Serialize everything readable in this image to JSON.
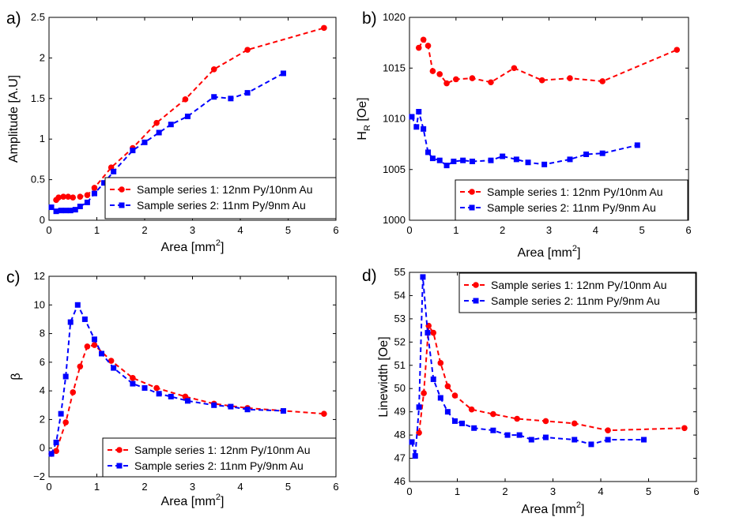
{
  "chart_data": [
    {
      "type": "line",
      "panel_label": "a)",
      "xlabel": "Area [mm",
      "xlabel_sup": "2",
      "xlabel_tail": "]",
      "ylabel": "Amplitude [A.U]",
      "xlim": [
        0,
        6
      ],
      "ylim": [
        0,
        2.5
      ],
      "xticks": [
        "0",
        "1",
        "2",
        "3",
        "4",
        "5",
        "6"
      ],
      "yticks": [
        "0",
        "0.5",
        "1",
        "1.5",
        "2",
        "2.5"
      ],
      "legend_position": "lower-right",
      "series": [
        {
          "name": "Sample series 1: 12nm Py/10nm Au",
          "color": "#ff0000",
          "marker": "circle",
          "x": [
            0.15,
            0.2,
            0.3,
            0.4,
            0.5,
            0.65,
            0.8,
            0.95,
            1.3,
            1.75,
            2.25,
            2.85,
            3.45,
            4.15,
            5.75
          ],
          "y": [
            0.25,
            0.28,
            0.29,
            0.29,
            0.28,
            0.29,
            0.31,
            0.4,
            0.65,
            0.89,
            1.2,
            1.49,
            1.86,
            2.1,
            2.37
          ]
        },
        {
          "name": "Sample series 2: 11nm Py/9nm Au",
          "color": "#0000ff",
          "marker": "square",
          "x": [
            0.05,
            0.15,
            0.25,
            0.35,
            0.45,
            0.55,
            0.65,
            0.8,
            0.95,
            1.15,
            1.35,
            1.75,
            2.0,
            2.3,
            2.55,
            2.9,
            3.45,
            3.8,
            4.15,
            4.9
          ],
          "y": [
            0.16,
            0.11,
            0.12,
            0.12,
            0.12,
            0.13,
            0.17,
            0.22,
            0.33,
            0.46,
            0.6,
            0.86,
            0.96,
            1.08,
            1.18,
            1.28,
            1.52,
            1.5,
            1.57,
            1.81
          ]
        }
      ]
    },
    {
      "type": "line",
      "panel_label": "b)",
      "xlabel": "Area [mm",
      "xlabel_sup": "2",
      "xlabel_tail": "]",
      "ylabel": "H",
      "ylabel_sub": "R",
      "ylabel_tail": " [Oe]",
      "xlim": [
        0,
        6
      ],
      "ylim": [
        1000,
        1020
      ],
      "xticks": [
        "0",
        "1",
        "2",
        "3",
        "4",
        "5",
        "6"
      ],
      "yticks": [
        "1000",
        "1005",
        "1010",
        "1015",
        "1020"
      ],
      "legend_position": "lower-right",
      "series": [
        {
          "name": "Sample series 1: 12nm Py/10nm Au",
          "color": "#ff0000",
          "marker": "circle",
          "x": [
            0.2,
            0.3,
            0.4,
            0.5,
            0.65,
            0.8,
            1.0,
            1.35,
            1.75,
            2.25,
            2.85,
            3.45,
            4.15,
            5.75
          ],
          "y": [
            1017.0,
            1017.8,
            1017.2,
            1014.7,
            1014.4,
            1013.5,
            1013.9,
            1014.0,
            1013.6,
            1015.0,
            1013.8,
            1014.0,
            1013.7,
            1016.8
          ]
        },
        {
          "name": "Sample series 2: 11nm Py/9nm Au",
          "color": "#0000ff",
          "marker": "square",
          "x": [
            0.05,
            0.15,
            0.2,
            0.3,
            0.4,
            0.5,
            0.65,
            0.8,
            0.95,
            1.15,
            1.35,
            1.75,
            2.0,
            2.3,
            2.55,
            2.9,
            3.45,
            3.8,
            4.15,
            4.9
          ],
          "y": [
            1010.2,
            1009.2,
            1010.7,
            1009.0,
            1006.7,
            1006.1,
            1005.9,
            1005.4,
            1005.8,
            1005.9,
            1005.8,
            1005.9,
            1006.3,
            1006.0,
            1005.7,
            1005.5,
            1006.0,
            1006.5,
            1006.6,
            1007.4
          ]
        }
      ]
    },
    {
      "type": "line",
      "panel_label": "c)",
      "xlabel": "Area [mm",
      "xlabel_sup": "2",
      "xlabel_tail": "]",
      "ylabel": "β",
      "xlim": [
        0,
        6
      ],
      "ylim": [
        -2,
        12
      ],
      "xticks": [
        "0",
        "1",
        "2",
        "3",
        "4",
        "5",
        "6"
      ],
      "yticks": [
        "−2",
        "0",
        "2",
        "4",
        "6",
        "8",
        "10",
        "12"
      ],
      "legend_position": "lower-right",
      "series": [
        {
          "name": "Sample series 1: 12nm Py/10nm Au",
          "color": "#ff0000",
          "marker": "circle",
          "x": [
            0.05,
            0.15,
            0.35,
            0.5,
            0.65,
            0.8,
            0.95,
            1.3,
            1.75,
            2.25,
            2.85,
            3.45,
            4.15,
            5.75
          ],
          "y": [
            -0.4,
            -0.2,
            1.8,
            3.9,
            5.7,
            7.1,
            7.2,
            6.1,
            4.9,
            4.2,
            3.6,
            3.1,
            2.8,
            2.4
          ]
        },
        {
          "name": "Sample series 2: 11nm Py/9nm Au",
          "color": "#0000ff",
          "marker": "square",
          "x": [
            0.05,
            0.15,
            0.25,
            0.35,
            0.45,
            0.6,
            0.75,
            0.95,
            1.1,
            1.35,
            1.75,
            2.0,
            2.3,
            2.55,
            2.9,
            3.45,
            3.8,
            4.15,
            4.9
          ],
          "y": [
            -0.4,
            0.4,
            2.4,
            5.0,
            8.8,
            10.0,
            9.0,
            7.6,
            6.6,
            5.6,
            4.5,
            4.2,
            3.8,
            3.6,
            3.3,
            3.0,
            2.9,
            2.7,
            2.6
          ]
        }
      ]
    },
    {
      "type": "line",
      "panel_label": "d)",
      "xlabel": "Area [mm",
      "xlabel_sup": "2",
      "xlabel_tail": "]",
      "ylabel": "Linewidth [Oe]",
      "xlim": [
        0,
        6
      ],
      "ylim": [
        46,
        55
      ],
      "xticks": [
        "0",
        "1",
        "2",
        "3",
        "4",
        "5",
        "6"
      ],
      "yticks": [
        "46",
        "47",
        "48",
        "49",
        "50",
        "51",
        "52",
        "53",
        "54",
        "55"
      ],
      "legend_position": "upper-right",
      "series": [
        {
          "name": "Sample series 1: 12nm Py/10nm Au",
          "color": "#ff0000",
          "marker": "circle",
          "x": [
            0.2,
            0.3,
            0.4,
            0.5,
            0.65,
            0.8,
            0.95,
            1.3,
            1.75,
            2.25,
            2.85,
            3.45,
            4.15,
            5.75
          ],
          "y": [
            48.1,
            49.8,
            52.7,
            52.4,
            51.1,
            50.1,
            49.7,
            49.1,
            48.9,
            48.7,
            48.6,
            48.5,
            48.2,
            48.3
          ]
        },
        {
          "name": "Sample series 2: 11nm Py/9nm Au",
          "color": "#0000ff",
          "marker": "square",
          "x": [
            0.05,
            0.12,
            0.2,
            0.28,
            0.38,
            0.5,
            0.65,
            0.8,
            0.95,
            1.1,
            1.35,
            1.75,
            2.05,
            2.3,
            2.55,
            2.85,
            3.45,
            3.8,
            4.15,
            4.9
          ],
          "y": [
            47.7,
            47.1,
            49.2,
            54.8,
            52.4,
            50.4,
            49.6,
            49.0,
            48.6,
            48.5,
            48.3,
            48.2,
            48.0,
            48.0,
            47.8,
            47.9,
            47.8,
            47.6,
            47.8,
            47.8
          ]
        }
      ]
    }
  ]
}
